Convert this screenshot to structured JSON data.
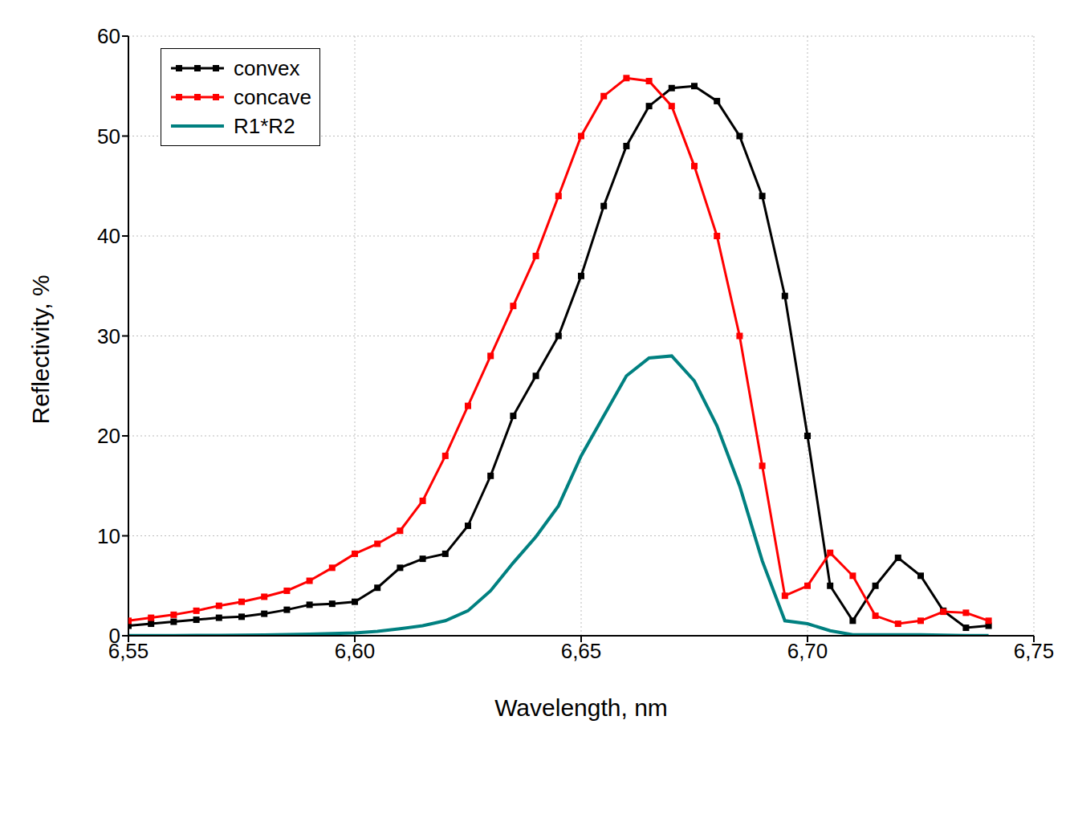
{
  "chart_data": {
    "type": "line",
    "x_label": "Wavelength, nm",
    "y_label": "Reflectivity, %",
    "x": [
      6.55,
      6.555,
      6.56,
      6.565,
      6.57,
      6.575,
      6.58,
      6.585,
      6.59,
      6.595,
      6.6,
      6.605,
      6.61,
      6.615,
      6.62,
      6.625,
      6.63,
      6.635,
      6.64,
      6.645,
      6.65,
      6.655,
      6.66,
      6.665,
      6.67,
      6.675,
      6.68,
      6.685,
      6.69,
      6.695,
      6.7,
      6.705,
      6.71,
      6.715,
      6.72,
      6.725,
      6.73,
      6.735,
      6.74
    ],
    "series": [
      {
        "name": "convex",
        "color": "#000000",
        "marker": "square",
        "line_style": "solid",
        "values": [
          1.0,
          1.2,
          1.4,
          1.6,
          1.8,
          1.9,
          2.2,
          2.6,
          3.1,
          3.2,
          3.4,
          4.8,
          6.8,
          7.7,
          8.2,
          11,
          16,
          22,
          26,
          30,
          36,
          43,
          49,
          53,
          54.8,
          55,
          53.5,
          50,
          44,
          34,
          20,
          5,
          1.5,
          5,
          7.8,
          6,
          2.5,
          0.8,
          1.0
        ]
      },
      {
        "name": "concave",
        "color": "#ff0000",
        "marker": "square",
        "line_style": "solid",
        "values": [
          1.5,
          1.8,
          2.1,
          2.5,
          3.0,
          3.4,
          3.9,
          4.5,
          5.5,
          6.8,
          8.2,
          9.2,
          10.5,
          13.5,
          18,
          23,
          28,
          33,
          38,
          44,
          50,
          54,
          55.8,
          55.5,
          53,
          47,
          40,
          30,
          17,
          4,
          5,
          8.3,
          6,
          2,
          1.2,
          1.5,
          2.4,
          2.3,
          1.5
        ]
      },
      {
        "name": "R1*R2",
        "color": "#008080",
        "marker": "none",
        "line_style": "solid",
        "values": [
          0.02,
          0.02,
          0.03,
          0.04,
          0.05,
          0.07,
          0.09,
          0.12,
          0.17,
          0.22,
          0.28,
          0.44,
          0.7,
          1.0,
          1.5,
          2.5,
          4.5,
          7.3,
          9.9,
          13,
          18,
          22,
          26,
          27.8,
          28,
          25.5,
          21,
          15,
          7.5,
          1.5,
          1.2,
          0.5,
          0.1,
          0.1,
          0.1,
          0.1,
          0.06,
          0.02,
          0.02
        ]
      }
    ],
    "xlim": [
      6.55,
      6.75
    ],
    "xticks": [
      {
        "value": 6.55,
        "label": "6,55"
      },
      {
        "value": 6.6,
        "label": "6,60"
      },
      {
        "value": 6.65,
        "label": "6,65"
      },
      {
        "value": 6.7,
        "label": "6,70"
      },
      {
        "value": 6.75,
        "label": "6,75"
      }
    ],
    "ylim": [
      0,
      60
    ],
    "yticks": [
      0,
      10,
      20,
      30,
      40,
      50,
      60
    ],
    "grid": true,
    "legend": "upper left"
  }
}
